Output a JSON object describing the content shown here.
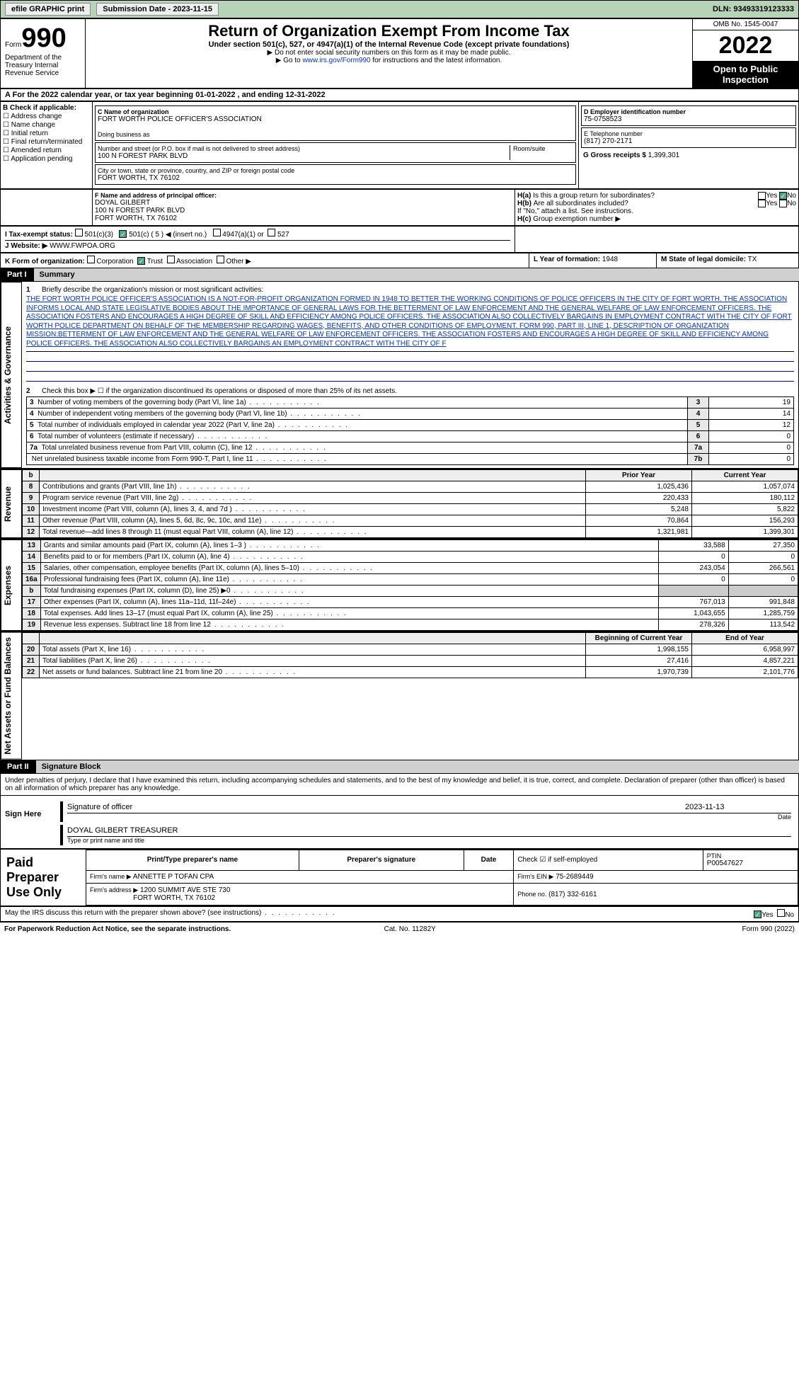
{
  "topbar": {
    "efile": "efile GRAPHIC print",
    "submission_label": "Submission Date - 2023-11-15",
    "dln_label": "DLN: 93493319123333"
  },
  "header": {
    "form_word": "Form",
    "form_num": "990",
    "dept": "Department of the Treasury Internal Revenue Service",
    "title": "Return of Organization Exempt From Income Tax",
    "sub": "Under section 501(c), 527, or 4947(a)(1) of the Internal Revenue Code (except private foundations)",
    "note1": "▶ Do not enter social security numbers on this form as it may be made public.",
    "note2_pre": "▶ Go to ",
    "note2_link": "www.irs.gov/Form990",
    "note2_post": " for instructions and the latest information.",
    "omb": "OMB No. 1545-0047",
    "year": "2022",
    "open": "Open to Public Inspection"
  },
  "row_a": "A For the 2022 calendar year, or tax year beginning 01-01-2022    , and ending 12-31-2022",
  "box_b": {
    "title": "B Check if applicable:",
    "items": [
      "Address change",
      "Name change",
      "Initial return",
      "Final return/terminated",
      "Amended return",
      "Application pending"
    ]
  },
  "box_c": {
    "label": "C Name of organization",
    "name": "FORT WORTH POLICE OFFICER'S ASSOCIATION",
    "dba_label": "Doing business as",
    "addr_label": "Number and street (or P.O. box if mail is not delivered to street address)",
    "room_label": "Room/suite",
    "addr": "100 N FOREST PARK BLVD",
    "city_label": "City or town, state or province, country, and ZIP or foreign postal code",
    "city": "FORT WORTH, TX  76102"
  },
  "box_d": {
    "label": "D Employer identification number",
    "value": "75-0758523"
  },
  "box_e": {
    "label": "E Telephone number",
    "value": "(817) 270-2171"
  },
  "box_g": {
    "label": "G Gross receipts $",
    "value": "1,399,301"
  },
  "box_f": {
    "label": "F  Name and address of principal officer:",
    "name": "DOYAL GILBERT",
    "addr1": "100 N FOREST PARK BLVD",
    "addr2": "FORT WORTH, TX  76102"
  },
  "box_h": {
    "ha_label": "Is this a group return for subordinates?",
    "hb_label": "Are all subordinates included?",
    "hb_note": "If \"No,\" attach a list. See instructions.",
    "hc_label": "Group exemption number ▶",
    "ha": "H(a)",
    "hb": "H(b)",
    "hc": "H(c)",
    "yes": "Yes",
    "no": "No"
  },
  "row_i": {
    "label": "I   Tax-exempt status:",
    "opt1": "501(c)(3)",
    "opt2": "501(c) ( 5 ) ◀ (insert no.)",
    "opt3": "4947(a)(1) or",
    "opt4": "527"
  },
  "row_j": {
    "label": "J   Website: ▶",
    "value": "WWW.FWPOA.ORG"
  },
  "row_k": {
    "label": "K Form of organization:",
    "opts": [
      "Corporation",
      "Trust",
      "Association",
      "Other ▶"
    ],
    "checked_idx": 1
  },
  "row_l": {
    "label": "L Year of formation:",
    "value": "1948"
  },
  "row_m": {
    "label": "M State of legal domicile:",
    "value": "TX"
  },
  "part1": {
    "tag": "Part I",
    "label": "Summary"
  },
  "side_labels": {
    "ag": "Activities & Governance",
    "rev": "Revenue",
    "exp": "Expenses",
    "net": "Net Assets or Fund Balances"
  },
  "line1": {
    "label": "Briefly describe the organization's mission or most significant activities:",
    "text": "THE FORT WORTH POLICE OFFICER'S ASSOCIATION IS A NOT-FOR-PROFIT ORGANIZATION FORMED IN 1948 TO BETTER THE WORKING CONDITIONS OF POLICE OFFICERS IN THE CITY OF FORT WORTH. THE ASSOCIATION INFORMS LOCAL AND STATE LEGISLATIVE BODIES ABOUT THE IMPORTANCE OF GENERAL LAWS FOR THE BETTERMENT OF LAW ENFORCEMENT AND THE GENERAL WELFARE OF LAW ENFORCEMENT OFFICERS. THE ASSOCIATION FOSTERS AND ENCOURAGES A HIGH DEGREE OF SKILL AND EFFICIENCY AMONG POLICE OFFICERS. THE ASSOCIATION ALSO COLLECTIVELY BARGAINS IN EMPLOYMENT CONTRACT WITH THE CITY OF FORT WORTH POLICE DEPARTMENT ON BEHALF OF THE MEMBERSHIP REGARDING WAGES, BENEFITS, AND OTHER CONDITIONS OF EMPLOYMENT. FORM 990, PART III, LINE 1, DESCRIPTION OF ORGANIZATION MISSION:BETTERMENT OF LAW ENFORCEMENT AND THE GENERAL WELFARE OF LAW ENFORCEMENT OFFICERS. THE ASSOCIATION FOSTERS AND ENCOURAGES A HIGH DEGREE OF SKILL AND EFFICIENCY AMONG POLICE OFFICERS. THE ASSOCIATION ALSO COLLECTIVELY BARGAINS AN EMPLOYMENT CONTRACT WITH THE CITY OF F"
  },
  "line2": "Check this box ▶ ☐ if the organization discontinued its operations or disposed of more than 25% of its net assets.",
  "gov_rows": [
    {
      "n": "3",
      "t": "Number of voting members of the governing body (Part VI, line 1a)",
      "box": "3",
      "v": "19"
    },
    {
      "n": "4",
      "t": "Number of independent voting members of the governing body (Part VI, line 1b)",
      "box": "4",
      "v": "14"
    },
    {
      "n": "5",
      "t": "Total number of individuals employed in calendar year 2022 (Part V, line 2a)",
      "box": "5",
      "v": "12"
    },
    {
      "n": "6",
      "t": "Total number of volunteers (estimate if necessary)",
      "box": "6",
      "v": "0"
    },
    {
      "n": "7a",
      "t": "Total unrelated business revenue from Part VIII, column (C), line 12",
      "box": "7a",
      "v": "0"
    },
    {
      "n": "",
      "t": "Net unrelated business taxable income from Form 990-T, Part I, line 11",
      "box": "7b",
      "v": "0"
    }
  ],
  "year_hdr": {
    "b": "b",
    "prior": "Prior Year",
    "current": "Current Year"
  },
  "rev_rows": [
    {
      "n": "8",
      "t": "Contributions and grants (Part VIII, line 1h)",
      "p": "1,025,436",
      "c": "1,057,074"
    },
    {
      "n": "9",
      "t": "Program service revenue (Part VIII, line 2g)",
      "p": "220,433",
      "c": "180,112"
    },
    {
      "n": "10",
      "t": "Investment income (Part VIII, column (A), lines 3, 4, and 7d )",
      "p": "5,248",
      "c": "5,822"
    },
    {
      "n": "11",
      "t": "Other revenue (Part VIII, column (A), lines 5, 6d, 8c, 9c, 10c, and 11e)",
      "p": "70,864",
      "c": "156,293"
    },
    {
      "n": "12",
      "t": "Total revenue—add lines 8 through 11 (must equal Part VIII, column (A), line 12)",
      "p": "1,321,981",
      "c": "1,399,301"
    }
  ],
  "exp_rows": [
    {
      "n": "13",
      "t": "Grants and similar amounts paid (Part IX, column (A), lines 1–3 )",
      "p": "33,588",
      "c": "27,350"
    },
    {
      "n": "14",
      "t": "Benefits paid to or for members (Part IX, column (A), line 4)",
      "p": "0",
      "c": "0"
    },
    {
      "n": "15",
      "t": "Salaries, other compensation, employee benefits (Part IX, column (A), lines 5–10)",
      "p": "243,054",
      "c": "266,561"
    },
    {
      "n": "16a",
      "t": "Professional fundraising fees (Part IX, column (A), line 11e)",
      "p": "0",
      "c": "0"
    },
    {
      "n": "b",
      "t": "Total fundraising expenses (Part IX, column (D), line 25) ▶0",
      "p": "__shade__",
      "c": "__shade__"
    },
    {
      "n": "17",
      "t": "Other expenses (Part IX, column (A), lines 11a–11d, 11f–24e)",
      "p": "767,013",
      "c": "991,848"
    },
    {
      "n": "18",
      "t": "Total expenses. Add lines 13–17 (must equal Part IX, column (A), line 25)",
      "p": "1,043,655",
      "c": "1,285,759"
    },
    {
      "n": "19",
      "t": "Revenue less expenses. Subtract line 18 from line 12",
      "p": "278,326",
      "c": "113,542"
    }
  ],
  "net_hdr": {
    "boy": "Beginning of Current Year",
    "eoy": "End of Year"
  },
  "net_rows": [
    {
      "n": "20",
      "t": "Total assets (Part X, line 16)",
      "p": "1,998,155",
      "c": "6,958,997"
    },
    {
      "n": "21",
      "t": "Total liabilities (Part X, line 26)",
      "p": "27,416",
      "c": "4,857,221"
    },
    {
      "n": "22",
      "t": "Net assets or fund balances. Subtract line 21 from line 20",
      "p": "1,970,739",
      "c": "2,101,776"
    }
  ],
  "part2": {
    "tag": "Part II",
    "label": "Signature Block"
  },
  "declare": "Under penalties of perjury, I declare that I have examined this return, including accompanying schedules and statements, and to the best of my knowledge and belief, it is true, correct, and complete. Declaration of preparer (other than officer) is based on all information of which preparer has any knowledge.",
  "sign": {
    "label": "Sign Here",
    "sig_label": "Signature of officer",
    "date_label": "Date",
    "date": "2023-11-13",
    "name": "DOYAL GILBERT TREASURER",
    "name_label": "Type or print name and title"
  },
  "paid": {
    "label": "Paid Preparer Use Only",
    "hdr": [
      "Print/Type preparer's name",
      "Preparer's signature",
      "Date"
    ],
    "check_label": "Check ☑ if self-employed",
    "ptin_label": "PTIN",
    "ptin": "P00547627",
    "firm_name_label": "Firm's name    ▶",
    "firm_name": "ANNETTE P TOFAN CPA",
    "firm_ein_label": "Firm's EIN ▶",
    "firm_ein": "75-2689449",
    "firm_addr_label": "Firm's address ▶",
    "firm_addr1": "1200 SUMMIT AVE STE 730",
    "firm_addr2": "FORT WORTH, TX  76102",
    "phone_label": "Phone no.",
    "phone": "(817) 332-6161"
  },
  "discuss": "May the IRS discuss this return with the preparer shown above? (see instructions)",
  "footer": {
    "left": "For Paperwork Reduction Act Notice, see the separate instructions.",
    "mid": "Cat. No. 11282Y",
    "right": "Form 990 (2022)"
  }
}
